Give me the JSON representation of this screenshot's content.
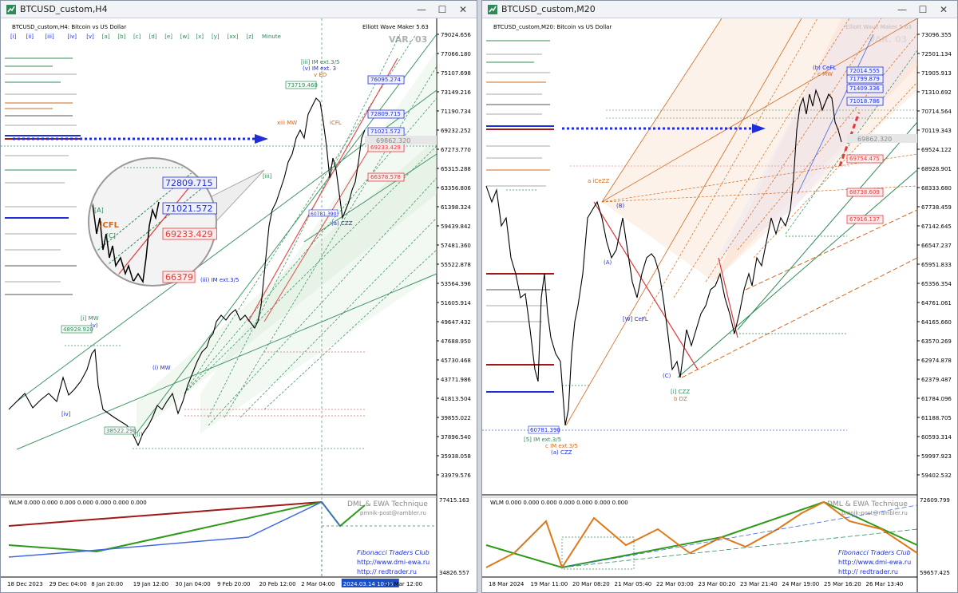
{
  "colors": {
    "up": "#000000",
    "fibo_green": "#2e8b57",
    "fibo_red": "#e03c3c",
    "arrow_blue": "#1f2ed8",
    "fibo_orange": "#d2691e",
    "wlm_red": "#a01818",
    "wlm_green": "#2f9a1a",
    "wlm_blue": "#4169e1",
    "wlm_orange": "#e07818"
  },
  "left": {
    "window_title": "BTCUSD_custom,H4",
    "symbol_line": "BTCUSD_custom,H4:  Bitcoin vs US Dollar",
    "tool_name": "Elliott Wave Maker 5.63",
    "var_label": "VAR. 03",
    "timeframes": [
      "[i]",
      "[ii]",
      "[iii]",
      "[iv]",
      "[v]",
      "[a]",
      "[b]",
      "[c]",
      "[d]",
      "[e]",
      "[w]",
      "[x]",
      "[y]",
      "[xx]",
      "[z]",
      "Minute"
    ],
    "price_scale": [
      "79024.656",
      "77066.180",
      "75107.698",
      "73149.216",
      "71190.734",
      "69232.252",
      "67273.770",
      "65315.288",
      "63356.806",
      "61398.324",
      "59439.842",
      "57481.360",
      "55522.878",
      "53564.396",
      "51605.914",
      "49647.432",
      "47688.950",
      "45730.468",
      "43771.986",
      "41813.504",
      "39855.022",
      "37896.540",
      "35938.058",
      "33979.576"
    ],
    "current_price": "69862.320",
    "level_tags": [
      {
        "text": "76095.274",
        "color": "#1f2ed8"
      },
      {
        "text": "72809.715",
        "color": "#1f2ed8"
      },
      {
        "text": "71021.572",
        "color": "#1f2ed8"
      },
      {
        "text": "69233.429",
        "color": "#e03c3c"
      },
      {
        "text": "66378.578",
        "color": "#e03c3c"
      }
    ],
    "price_labels": {
      "top": "73719.460",
      "mw": "48928.920",
      "low": "38522.290",
      "last_low": "60781.390"
    },
    "wave_labels": {
      "iii_im": "[iii] IM ext.3/5",
      "v_im": "(v) IM ext. 3",
      "v_ed": "v ED",
      "xiii_mw": "xiii MW",
      "icfl": "iCFL",
      "a_czz": "(a) CZZ",
      "iii_im2": "(iii) IM ext.3/5",
      "i_mw": "[i] MW",
      "i_mw2": "(i) MW",
      "iv": "[iv]",
      "ii": "[ii]",
      "iii": "[iii]",
      "v": "(v)"
    },
    "zoom_tags": [
      {
        "text": "72809.715",
        "color": "#1f2ed8"
      },
      {
        "text": "71021.572",
        "color": "#1f2ed8"
      },
      {
        "text": "69233.429",
        "color": "#e03c3c"
      },
      {
        "text": "66379",
        "color": "#e03c3c"
      }
    ],
    "zoom_labels": {
      "a": "[A]",
      "icfl": "iCFL",
      "c": "[C]"
    },
    "wlm_line": "WLM 0.000 0.000 0.000 0.000 0.000 0.000 0.000",
    "wlm_scale": [
      "77415.163",
      "34826.557"
    ],
    "dml": "DML & EWA Technique",
    "email": "pmnik-post@rambler.ru",
    "club": "Fibonacci     Traders     Club",
    "site1": "http://www.dmi-ewa.ru",
    "site2": "http:// redtrader.ru",
    "time_axis": [
      "18 Dec 2023",
      "29 Dec 04:00",
      "8 Jan 20:00",
      "19 Jan 12:00",
      "30 Jan 04:00",
      "9 Feb 20:00",
      "20 Feb 12:00",
      "2 Mar 04:00",
      "2024.03.14 10:05",
      "23 Mar 12:00"
    ]
  },
  "right": {
    "window_title": "BTCUSD_custom,M20",
    "symbol_line": "BTCUSD_custom,M20:  Bitcoin vs US Dollar",
    "tool_name": "Elliott Wave Maker 5.63",
    "var_label": "VAR. 03",
    "price_scale": [
      "73096.355",
      "72501.134",
      "71905.913",
      "71310.692",
      "70714.564",
      "70119.343",
      "69524.122",
      "68928.901",
      "68333.680",
      "67738.459",
      "67142.645",
      "66547.237",
      "65951.833",
      "65356.354",
      "64761.061",
      "64165.660",
      "63570.269",
      "62974.878",
      "62379.487",
      "61784.096",
      "61188.705",
      "60593.314",
      "59997.923",
      "59402.532"
    ],
    "current_price": "69862.320",
    "level_tags": [
      {
        "text": "72014.555",
        "color": "#1f2ed8"
      },
      {
        "text": "71799.879",
        "color": "#1f2ed8"
      },
      {
        "text": "71409.336",
        "color": "#1f2ed8"
      },
      {
        "text": "71018.786",
        "color": "#1f2ed8"
      },
      {
        "text": "69754.475",
        "color": "#e03c3c"
      },
      {
        "text": "68738.609",
        "color": "#e03c3c"
      },
      {
        "text": "67916.137",
        "color": "#e03c3c"
      }
    ],
    "price_labels": {
      "low": "60781.390"
    },
    "wave_labels": {
      "a_icezz": "a iCeZZ",
      "b_cefl": "(b) CeFL",
      "c_mw": "c MW",
      "v_im": "[5] IM ext.3/5",
      "c_im": "c IM ext.3/5",
      "a_czz": "(a) CZZ",
      "i_czz": "[i] CZZ",
      "b_dz": "b DZ",
      "w_cefl": "[W] CeFL",
      "A": "(A)",
      "B": "(B)",
      "C": "(C)"
    },
    "wlm_line": "WLM 0.000 0.000 0.000 0.000 0.000 0.000 0.000",
    "wlm_scale": [
      "72609.799",
      "59657.425"
    ],
    "dml": "DML & EWA Technique",
    "email": "pmnik-post@rambler.ru",
    "club": "Fibonacci     Traders     Club",
    "site1": "http://www.dmi-ewa.ru",
    "site2": "http:// redtrader.ru",
    "time_axis": [
      "18 Mar 2024",
      "19 Mar 11:00",
      "20 Mar 08:20",
      "21 Mar 05:40",
      "22 Mar 03:00",
      "23 Mar 00:20",
      "23 Mar 21:40",
      "24 Mar 19:00",
      "25 Mar 16:20",
      "26 Mar 13:40"
    ]
  }
}
